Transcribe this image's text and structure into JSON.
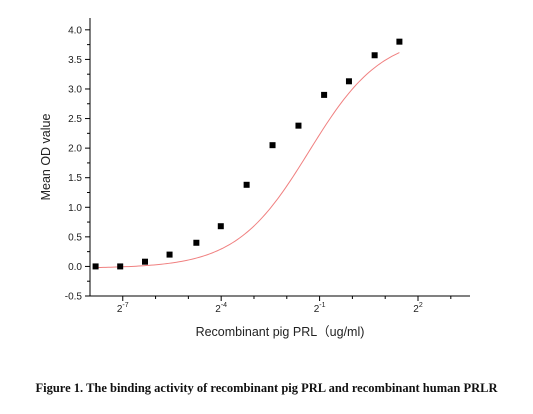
{
  "chart_data": {
    "type": "scatter",
    "title": "",
    "xlabel": "Recombinant pig PRL（ug/ml)",
    "ylabel": "Mean OD value",
    "x_scale": "log2",
    "xlim": [
      0.00391,
      12.0
    ],
    "ylim": [
      -0.5,
      4.2
    ],
    "y_ticks": [
      "-0.5",
      "0.0",
      "0.5",
      "1.0",
      "1.5",
      "2.0",
      "2.5",
      "3.0",
      "3.5",
      "4.0"
    ],
    "x_ticks": [
      {
        "base": "2",
        "exp": "-7",
        "value": 0.0078125
      },
      {
        "base": "2",
        "exp": "-4",
        "value": 0.0625
      },
      {
        "base": "2",
        "exp": "-1",
        "value": 0.5
      },
      {
        "base": "2",
        "exp": "2",
        "value": 4
      }
    ],
    "series": [
      {
        "marker": "square",
        "color": "#000000",
        "x": [
          0.0044,
          0.0074,
          0.0125,
          0.021,
          0.037,
          0.062,
          0.107,
          0.185,
          0.32,
          0.55,
          0.93,
          1.6,
          2.7
        ],
        "y": [
          0.0,
          0.0,
          0.08,
          0.2,
          0.4,
          0.68,
          1.38,
          2.05,
          2.38,
          2.9,
          3.13,
          3.57,
          3.8
        ]
      }
    ],
    "fit_curve": {
      "color": "#f08080",
      "bottom": -0.03,
      "top": 3.92,
      "ec50": 0.4,
      "hill": 1.3
    },
    "grid": false,
    "legend": "none"
  },
  "caption": "Figure 1. The binding activity of recombinant pig PRL and recombinant human PRLR"
}
